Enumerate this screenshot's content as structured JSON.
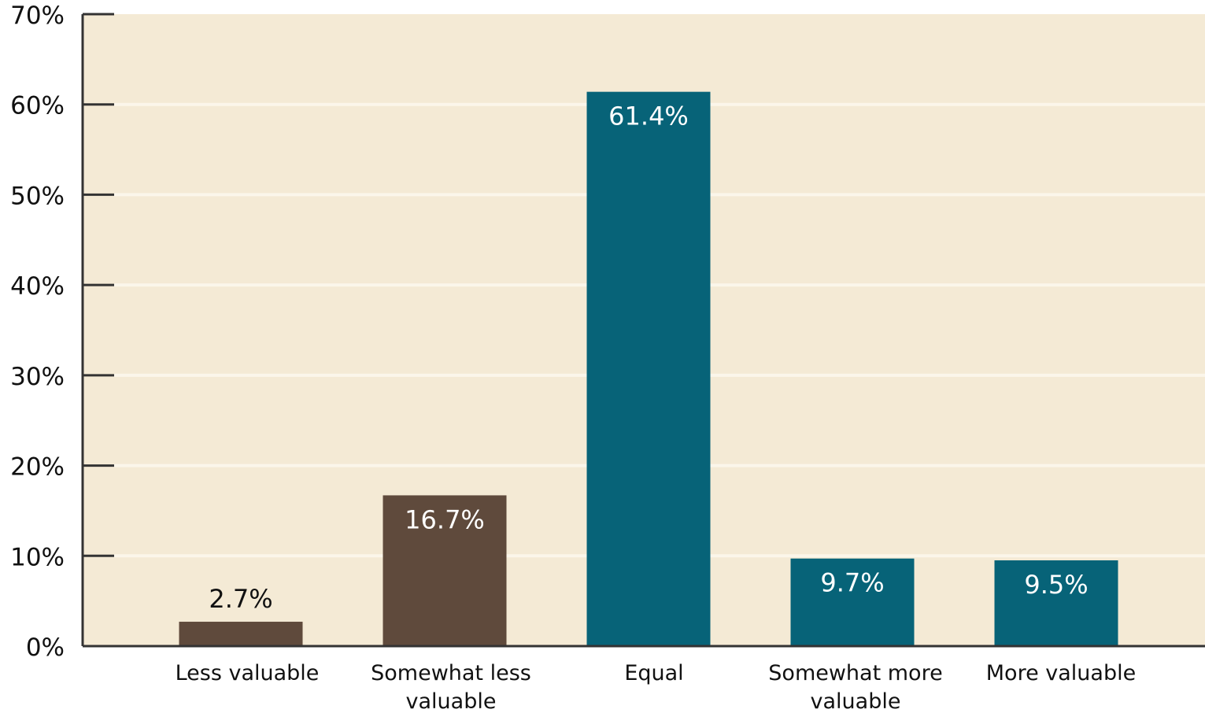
{
  "chart_data": {
    "type": "bar",
    "title": "",
    "xlabel": "",
    "ylabel": "",
    "categories": [
      "Less valuable",
      "Somewhat less valuable",
      "Equal",
      "Somewhat more valuable",
      "More valuable"
    ],
    "category_lines": [
      [
        "Less valuable"
      ],
      [
        "Somewhat less",
        "valuable"
      ],
      [
        "Equal"
      ],
      [
        "Somewhat more",
        "valuable"
      ],
      [
        "More valuable"
      ]
    ],
    "values": [
      2.7,
      16.7,
      61.4,
      9.7,
      9.5
    ],
    "data_labels": [
      "2.7%",
      "16.7%",
      "61.4%",
      "9.7%",
      "9.5%"
    ],
    "ylim": [
      0,
      70
    ],
    "yticks": [
      0,
      10,
      20,
      30,
      40,
      50,
      60,
      70
    ],
    "ytick_labels": [
      "0%",
      "10%",
      "20%",
      "30%",
      "40%",
      "50%",
      "60%",
      "70%"
    ],
    "grid": true,
    "legend": "none",
    "colors": {
      "background": "#f4ead5",
      "gridline": "#fbf6ea",
      "axis": "#333333",
      "negative_bars": "#5f4a3c",
      "positive_bars": "#076378",
      "label_inside": "#ffffff",
      "label_outside": "#111111",
      "tick_text": "#111111"
    },
    "bar_colors": [
      "#5f4a3c",
      "#5f4a3c",
      "#076378",
      "#076378",
      "#076378"
    ]
  }
}
